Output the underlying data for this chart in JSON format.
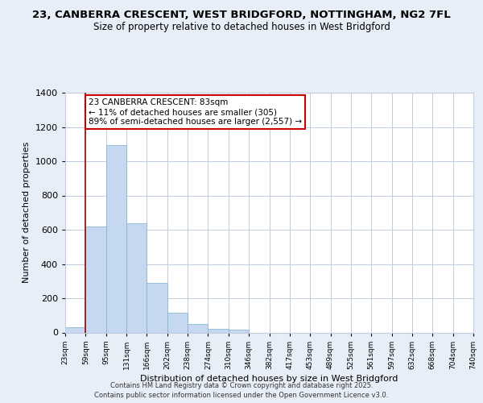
{
  "title": "23, CANBERRA CRESCENT, WEST BRIDGFORD, NOTTINGHAM, NG2 7FL",
  "subtitle": "Size of property relative to detached houses in West Bridgford",
  "xlabel": "Distribution of detached houses by size in West Bridgford",
  "ylabel": "Number of detached properties",
  "bar_values": [
    30,
    620,
    1095,
    640,
    290,
    115,
    50,
    20,
    15,
    0,
    0,
    0,
    0,
    0,
    0,
    0,
    0,
    0,
    0,
    0
  ],
  "bin_labels": [
    "23sqm",
    "59sqm",
    "95sqm",
    "131sqm",
    "166sqm",
    "202sqm",
    "238sqm",
    "274sqm",
    "310sqm",
    "346sqm",
    "382sqm",
    "417sqm",
    "453sqm",
    "489sqm",
    "525sqm",
    "561sqm",
    "597sqm",
    "632sqm",
    "668sqm",
    "704sqm",
    "740sqm"
  ],
  "bar_color": "#c5d8f0",
  "bar_edge_color": "#7bafd4",
  "vline_x": 1.0,
  "vline_color": "#aa0000",
  "ylim": [
    0,
    1400
  ],
  "yticks": [
    0,
    200,
    400,
    600,
    800,
    1000,
    1200,
    1400
  ],
  "annotation_title": "23 CANBERRA CRESCENT: 83sqm",
  "annotation_line1": "← 11% of detached houses are smaller (305)",
  "annotation_line2": "89% of semi-detached houses are larger (2,557) →",
  "annotation_box_color": "#ffffff",
  "annotation_box_edge": "#cc0000",
  "footer1": "Contains HM Land Registry data © Crown copyright and database right 2025.",
  "footer2": "Contains public sector information licensed under the Open Government Licence v3.0.",
  "bg_color": "#e8eef8",
  "plot_bg_color": "#ffffff",
  "grid_color": "#c0cce0"
}
